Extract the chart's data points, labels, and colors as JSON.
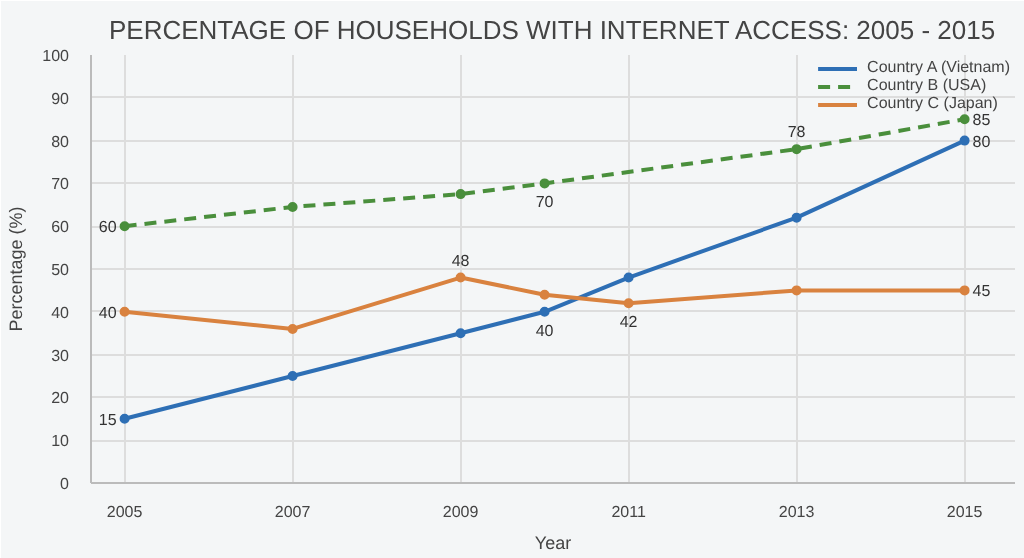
{
  "chart_data": {
    "type": "line",
    "title": "PERCENTAGE OF HOUSEHOLDS WITH INTERNET ACCESS: 2005 - 2015",
    "xlabel": "Year",
    "ylabel": "Percentage (%)",
    "xlim": [
      2004.6,
      2015.6
    ],
    "xticks": [
      2005,
      2007,
      2009,
      2011,
      2013,
      2015
    ],
    "ylim": [
      0,
      100
    ],
    "yticks": [
      0,
      10,
      20,
      30,
      40,
      50,
      60,
      70,
      80,
      90,
      100
    ],
    "grid": true,
    "legend": "top right",
    "marker": "circle",
    "series": [
      {
        "name": "Country A (Vietnam)",
        "color": "#2e6fb5",
        "line_style": "solid",
        "x": [
          2005,
          2007,
          2009,
          2010,
          2011,
          2013,
          2015
        ],
        "values": [
          15,
          25,
          35,
          40,
          48,
          62,
          80
        ],
        "value_labels": [
          "15",
          null,
          null,
          "40",
          null,
          null,
          "80"
        ]
      },
      {
        "name": "Country B (USA)",
        "color": "#4a8f3c",
        "line_style": "dashed",
        "x": [
          2005,
          2007,
          2009,
          2010,
          2013,
          2015
        ],
        "values": [
          60,
          64.5,
          67.5,
          70,
          78,
          85
        ],
        "value_labels": [
          "60",
          null,
          null,
          "70",
          "78",
          "85"
        ]
      },
      {
        "name": "Country C (Japan)",
        "color": "#d9823f",
        "line_style": "solid",
        "x": [
          2005,
          2007,
          2009,
          2010,
          2011,
          2013,
          2015
        ],
        "values": [
          40,
          36,
          48,
          44,
          42,
          45,
          45
        ],
        "value_labels": [
          "40",
          null,
          "48",
          null,
          "42",
          null,
          "45"
        ]
      }
    ]
  }
}
